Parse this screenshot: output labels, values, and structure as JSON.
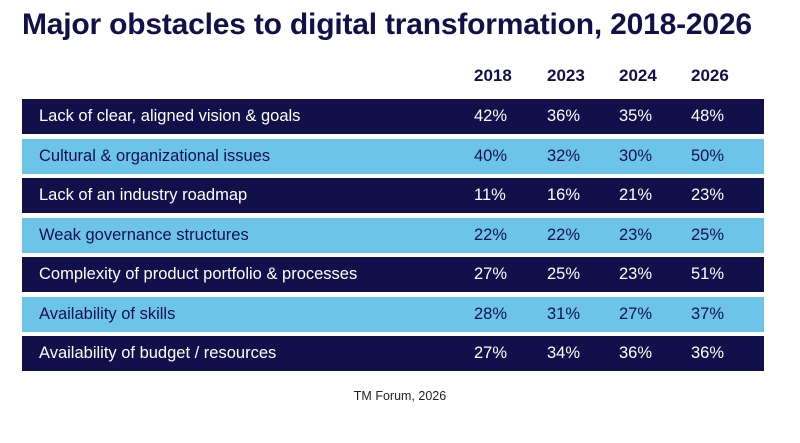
{
  "chart_data": {
    "type": "table",
    "title": "Major obstacles to digital transformation, 2018-2026",
    "columns": [
      "2018",
      "2023",
      "2024",
      "2026"
    ],
    "rows": [
      {
        "label": "Lack of clear, aligned vision & goals",
        "values": [
          "42%",
          "36%",
          "35%",
          "48%"
        ]
      },
      {
        "label": "Cultural & organizational issues",
        "values": [
          "40%",
          "32%",
          "30%",
          "50%"
        ]
      },
      {
        "label": "Lack of an industry roadmap",
        "values": [
          "11%",
          "16%",
          "21%",
          "23%"
        ]
      },
      {
        "label": "Weak governance structures",
        "values": [
          "22%",
          "22%",
          "23%",
          "25%"
        ]
      },
      {
        "label": "Complexity of product portfolio & processes",
        "values": [
          "27%",
          "25%",
          "23%",
          "51%"
        ]
      },
      {
        "label": "Availability of skills",
        "values": [
          "28%",
          "31%",
          "27%",
          "37%"
        ]
      },
      {
        "label": "Availability of budget / resources",
        "values": [
          "27%",
          "34%",
          "36%",
          "36%"
        ]
      }
    ],
    "source": "TM Forum, 2026"
  },
  "colors": {
    "dark_row": "#12104a",
    "light_row": "#6cc5e8",
    "title": "#12104a"
  }
}
